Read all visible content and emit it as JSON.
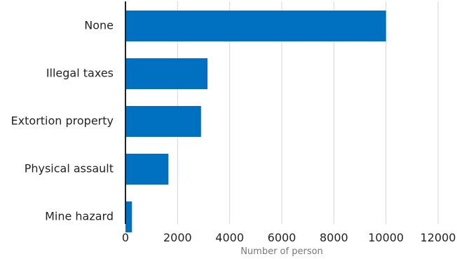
{
  "chart_data": {
    "type": "bar",
    "orientation": "horizontal",
    "categories": [
      "None",
      "Illegal taxes",
      "Extortion property",
      "Physical assault",
      "Mine hazard"
    ],
    "values": [
      10000,
      3150,
      2900,
      1650,
      250
    ],
    "xlabel": "Number of person",
    "ylabel": "",
    "xlim": [
      0,
      12000
    ],
    "xticks": [
      0,
      2000,
      4000,
      6000,
      8000,
      10000,
      12000
    ],
    "xtick_labels": [
      "0",
      "2000",
      "4000",
      "6000",
      "8000",
      "10000",
      "12000"
    ],
    "grid": "vertical",
    "bar_color": "#0070c0"
  }
}
